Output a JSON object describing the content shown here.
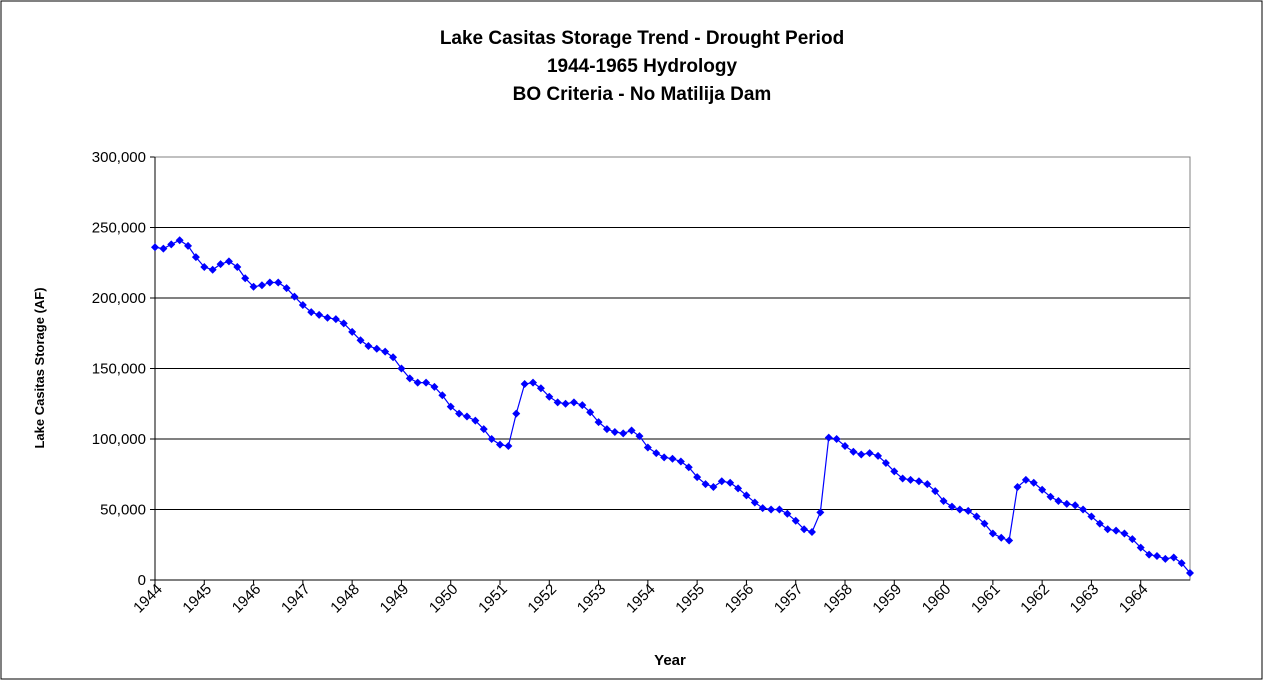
{
  "chart_data": {
    "type": "line",
    "title": "Lake Casitas Storage Trend - Drought Period",
    "subtitle": [
      "1944-1965 Hydrology",
      "BO Criteria - No Matilija Dam"
    ],
    "xlabel": "Year",
    "ylabel": "Lake Casitas Storage (AF)",
    "color": "#0000ff",
    "grid": true,
    "xlim": [
      1944,
      1965
    ],
    "xticks": [
      1944,
      1945,
      1946,
      1947,
      1948,
      1949,
      1950,
      1951,
      1952,
      1953,
      1954,
      1955,
      1956,
      1957,
      1958,
      1959,
      1960,
      1961,
      1962,
      1963,
      1964
    ],
    "ylim": [
      0,
      300000
    ],
    "yticks": [
      0,
      {
        "value": 50000,
        "label": "50,000"
      },
      {
        "value": 100000,
        "label": "100,000"
      },
      {
        "value": 150000,
        "label": "150,000"
      },
      {
        "value": 200000,
        "label": "200,000"
      },
      {
        "value": 250000,
        "label": "250,000"
      },
      {
        "value": 300000,
        "label": "300,000"
      }
    ],
    "x": [
      1944,
      1944.17,
      1944.33,
      1944.5,
      1944.67,
      1944.83,
      1945,
      1945.17,
      1945.33,
      1945.5,
      1945.67,
      1945.83,
      1946,
      1946.17,
      1946.33,
      1946.5,
      1946.67,
      1946.83,
      1947,
      1947.17,
      1947.33,
      1947.5,
      1947.67,
      1947.83,
      1948,
      1948.17,
      1948.33,
      1948.5,
      1948.67,
      1948.83,
      1949,
      1949.17,
      1949.33,
      1949.5,
      1949.67,
      1949.83,
      1950,
      1950.17,
      1950.33,
      1950.5,
      1950.67,
      1950.83,
      1951,
      1951.17,
      1951.33,
      1951.5,
      1951.67,
      1951.83,
      1952,
      1952.17,
      1952.33,
      1952.5,
      1952.67,
      1952.83,
      1953,
      1953.17,
      1953.33,
      1953.5,
      1953.67,
      1953.83,
      1954,
      1954.17,
      1954.33,
      1954.5,
      1954.67,
      1954.83,
      1955,
      1955.17,
      1955.33,
      1955.5,
      1955.67,
      1955.83,
      1956,
      1956.17,
      1956.33,
      1956.5,
      1956.67,
      1956.83,
      1957,
      1957.17,
      1957.33,
      1957.5,
      1957.67,
      1957.83,
      1958,
      1958.17,
      1958.33,
      1958.5,
      1958.67,
      1958.83,
      1959,
      1959.17,
      1959.33,
      1959.5,
      1959.67,
      1959.83,
      1960,
      1960.17,
      1960.33,
      1960.5,
      1960.67,
      1960.83,
      1961,
      1961.17,
      1961.33,
      1961.5,
      1961.67,
      1961.83,
      1962,
      1962.17,
      1962.33,
      1962.5,
      1962.67,
      1962.83,
      1963,
      1963.17,
      1963.33,
      1963.5,
      1963.67,
      1963.83,
      1964,
      1964.17,
      1964.33,
      1964.5,
      1964.67,
      1964.83,
      1965
    ],
    "values": [
      236000,
      235000,
      238000,
      241000,
      237000,
      229000,
      222000,
      220000,
      224000,
      226000,
      222000,
      214000,
      208000,
      209000,
      211000,
      211000,
      207000,
      201000,
      195000,
      190000,
      188000,
      186000,
      185000,
      182000,
      176000,
      170000,
      166000,
      164000,
      162000,
      158000,
      150000,
      143000,
      140000,
      140000,
      137000,
      131000,
      123000,
      118000,
      116000,
      113000,
      107000,
      100000,
      96000,
      95000,
      118000,
      139000,
      140000,
      136000,
      130000,
      126000,
      125000,
      126000,
      124000,
      119000,
      112000,
      107000,
      105000,
      104000,
      106000,
      102000,
      94000,
      90000,
      87000,
      86000,
      84000,
      80000,
      73000,
      68000,
      66000,
      70000,
      69000,
      65000,
      60000,
      55000,
      51000,
      50000,
      50000,
      47000,
      42000,
      36000,
      34000,
      48000,
      101000,
      100000,
      95000,
      91000,
      89000,
      90000,
      88000,
      83000,
      77000,
      72000,
      71000,
      70000,
      68000,
      63000,
      56000,
      52000,
      50000,
      49000,
      45000,
      40000,
      33000,
      30000,
      28000,
      66000,
      71000,
      69000,
      64000,
      59000,
      56000,
      54000,
      53000,
      50000,
      45000,
      40000,
      36000,
      35000,
      33000,
      29000,
      23000,
      18000,
      17000,
      15000,
      16000,
      12000,
      5000
    ]
  }
}
